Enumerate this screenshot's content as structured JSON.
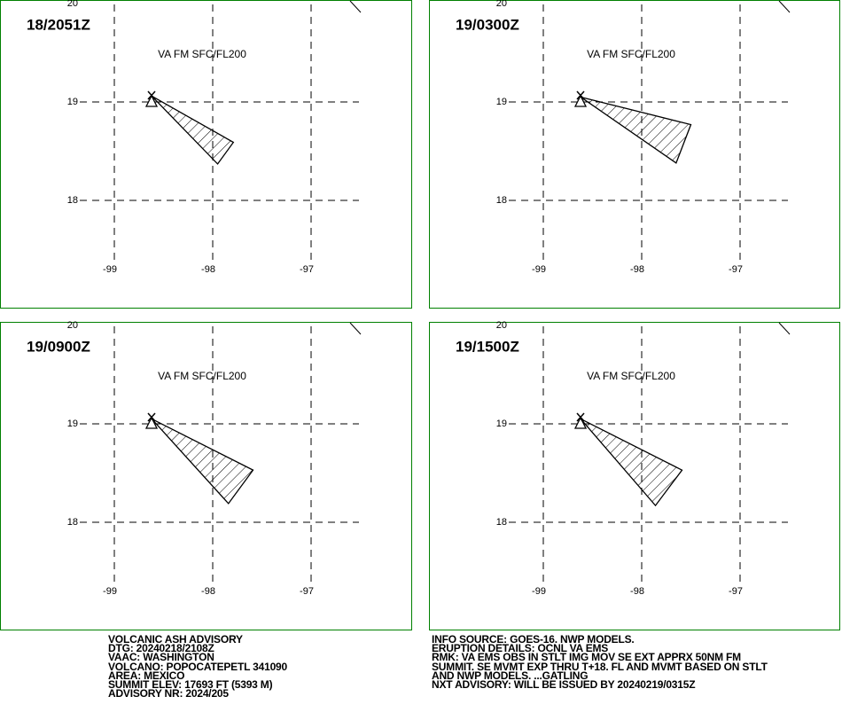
{
  "map": {
    "xticks": [
      -99,
      -98,
      -97
    ],
    "yticks": [
      18,
      19,
      20
    ]
  },
  "panels": [
    {
      "time": "18/2051Z",
      "label": "VA FM SFC/FL200",
      "lon": [
        -98.62,
        -97.79,
        -97.95
      ],
      "lat": [
        19.06,
        18.59,
        18.37
      ]
    },
    {
      "time": "19/0300Z",
      "label": "VA FM SFC/FL200",
      "lon": [
        -98.62,
        -97.5,
        -97.65
      ],
      "lat": [
        19.05,
        18.77,
        18.38
      ]
    },
    {
      "time": "19/0900Z",
      "label": "VA FM SFC/FL200",
      "lon": [
        -98.62,
        -97.59,
        -97.84
      ],
      "lat": [
        19.05,
        18.53,
        18.19
      ]
    },
    {
      "time": "19/1500Z",
      "label": "VA FM SFC/FL200",
      "lon": [
        -98.62,
        -97.59,
        -97.86
      ],
      "lat": [
        19.05,
        18.53,
        18.17
      ]
    }
  ],
  "footer": {
    "left": [
      "VOLCANIC ASH ADVISORY",
      "DTG: 20240218/2108Z",
      "VAAC: WASHINGTON",
      "VOLCANO: POPOCATEPETL 341090",
      "AREA: MEXICO",
      "SUMMIT ELEV: 17693 FT (5393 M)",
      "ADVISORY NR: 2024/205"
    ],
    "right": [
      "INFO SOURCE: GOES-16. NWP MODELS.",
      "ERUPTION DETAILS: OCNL VA EMS",
      "RMK: VA EMS OBS IN STLT IMG MOV SE EXT APPRX 50NM FM",
      "SUMMIT. SE MVMT EXP THRU T+18. FL AND MVMT BASED ON STLT",
      "AND NWP MODELS. ...GATLING",
      "NXT ADVISORY: WILL BE ISSUED BY 20240219/0315Z"
    ]
  }
}
